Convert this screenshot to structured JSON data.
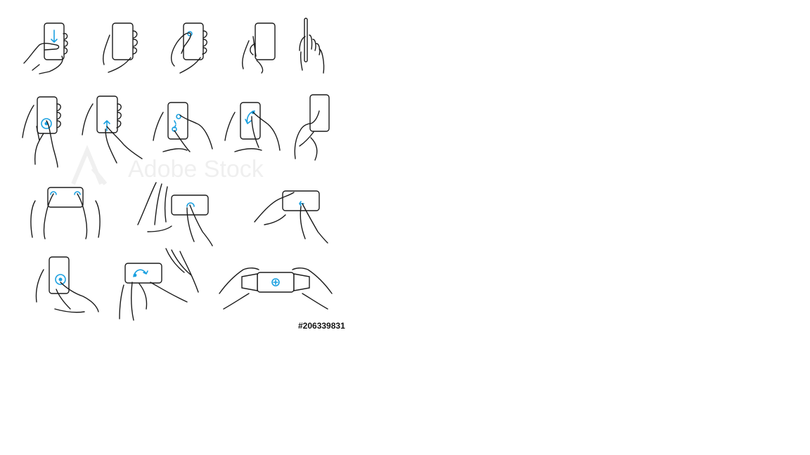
{
  "colors": {
    "accent": "#1aa0e0",
    "ink": "#1b1b1b"
  },
  "watermark": {
    "text": "Adobe Stock"
  },
  "stock_id": "#206339831",
  "icons": [
    "swipe-down-gesture-icon",
    "hold-phone-icon",
    "thumb-tap-icon",
    "hold-phone-side-icon",
    "phone-side-view-icon",
    "finger-tap-icon",
    "swipe-up-gesture-icon",
    "double-finger-tap-icon",
    "rotate-gesture-icon",
    "pinch-grip-icon",
    "two-thumb-landscape-icon",
    "landscape-tap-icon",
    "landscape-swipe-icon",
    "press-hold-icon",
    "landscape-rotate-icon",
    "landscape-zoom-icon"
  ]
}
